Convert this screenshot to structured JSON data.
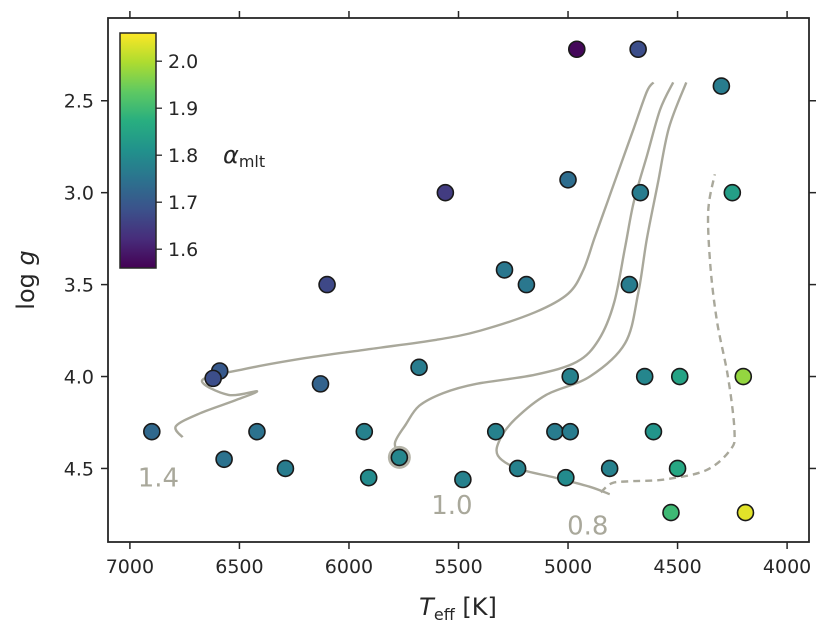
{
  "chart_data": {
    "type": "scatter",
    "xlabel": "T_eff [K]",
    "xlabel_main": "T",
    "xlabel_sub": "eff",
    "xlabel_unit": " [K]",
    "ylabel": "log g",
    "ylabel_main": "log ",
    "ylabel_var": "g",
    "xlim": [
      7100,
      3900
    ],
    "ylim": [
      4.9,
      2.05
    ],
    "x_ticks": [
      7000,
      6500,
      6000,
      5500,
      5000,
      4500,
      4000
    ],
    "x_tick_labels": [
      "7000",
      "6500",
      "6000",
      "5500",
      "5000",
      "4500",
      "4000"
    ],
    "y_ticks": [
      2.5,
      3.0,
      3.5,
      4.0,
      4.5
    ],
    "y_tick_labels": [
      "2.5",
      "3.0",
      "3.5",
      "4.0",
      "4.5"
    ],
    "colorbar": {
      "label": "α_mlt",
      "label_main": "α",
      "label_sub": "mlt",
      "range": [
        1.56,
        2.06
      ],
      "ticks": [
        1.6,
        1.7,
        1.8,
        1.9,
        2.0
      ],
      "tick_labels": [
        "1.6",
        "1.7",
        "1.8",
        "1.9",
        "2.0"
      ]
    },
    "points": [
      {
        "teff": 4960,
        "logg": 2.22,
        "alpha": 1.57
      },
      {
        "teff": 4680,
        "logg": 2.22,
        "alpha": 1.68
      },
      {
        "teff": 4300,
        "logg": 2.42,
        "alpha": 1.77
      },
      {
        "teff": 5000,
        "logg": 2.93,
        "alpha": 1.74
      },
      {
        "teff": 4670,
        "logg": 3.0,
        "alpha": 1.77
      },
      {
        "teff": 4250,
        "logg": 3.0,
        "alpha": 1.84
      },
      {
        "teff": 5560,
        "logg": 3.0,
        "alpha": 1.65
      },
      {
        "teff": 5290,
        "logg": 3.42,
        "alpha": 1.76
      },
      {
        "teff": 5190,
        "logg": 3.5,
        "alpha": 1.76
      },
      {
        "teff": 4720,
        "logg": 3.5,
        "alpha": 1.77
      },
      {
        "teff": 6100,
        "logg": 3.5,
        "alpha": 1.67
      },
      {
        "teff": 6590,
        "logg": 3.97,
        "alpha": 1.7
      },
      {
        "teff": 6620,
        "logg": 4.01,
        "alpha": 1.68
      },
      {
        "teff": 6130,
        "logg": 4.04,
        "alpha": 1.72
      },
      {
        "teff": 5680,
        "logg": 3.95,
        "alpha": 1.77
      },
      {
        "teff": 4990,
        "logg": 4.0,
        "alpha": 1.78
      },
      {
        "teff": 4650,
        "logg": 4.0,
        "alpha": 1.79
      },
      {
        "teff": 4490,
        "logg": 4.0,
        "alpha": 1.85
      },
      {
        "teff": 4200,
        "logg": 4.0,
        "alpha": 1.98
      },
      {
        "teff": 6900,
        "logg": 4.3,
        "alpha": 1.73
      },
      {
        "teff": 6420,
        "logg": 4.3,
        "alpha": 1.75
      },
      {
        "teff": 5930,
        "logg": 4.3,
        "alpha": 1.78
      },
      {
        "teff": 5330,
        "logg": 4.3,
        "alpha": 1.78
      },
      {
        "teff": 5060,
        "logg": 4.3,
        "alpha": 1.77
      },
      {
        "teff": 4990,
        "logg": 4.3,
        "alpha": 1.77
      },
      {
        "teff": 4610,
        "logg": 4.3,
        "alpha": 1.82
      },
      {
        "teff": 6570,
        "logg": 4.45,
        "alpha": 1.75
      },
      {
        "teff": 5770,
        "logg": 4.44,
        "alpha": 1.79
      },
      {
        "teff": 6290,
        "logg": 4.5,
        "alpha": 1.77
      },
      {
        "teff": 5230,
        "logg": 4.5,
        "alpha": 1.78
      },
      {
        "teff": 4810,
        "logg": 4.5,
        "alpha": 1.78
      },
      {
        "teff": 4500,
        "logg": 4.5,
        "alpha": 1.86
      },
      {
        "teff": 5910,
        "logg": 4.55,
        "alpha": 1.8
      },
      {
        "teff": 5480,
        "logg": 4.56,
        "alpha": 1.78
      },
      {
        "teff": 5010,
        "logg": 4.55,
        "alpha": 1.8
      },
      {
        "teff": 4530,
        "logg": 4.74,
        "alpha": 1.9
      },
      {
        "teff": 4190,
        "logg": 4.74,
        "alpha": 2.04
      }
    ],
    "sun_marker": {
      "teff": 5770,
      "logg": 4.44
    },
    "tracks": [
      {
        "label": "1.4",
        "style": "solid",
        "label_teff": 6870,
        "label_logg": 4.55,
        "points": [
          [
            6760,
            4.33
          ],
          [
            6790,
            4.27
          ],
          [
            6680,
            4.2
          ],
          [
            6520,
            4.13
          ],
          [
            6420,
            4.08
          ],
          [
            6550,
            4.1
          ],
          [
            6670,
            4.02
          ],
          [
            6480,
            3.96
          ],
          [
            6200,
            3.9
          ],
          [
            5900,
            3.85
          ],
          [
            5600,
            3.8
          ],
          [
            5400,
            3.75
          ],
          [
            5150,
            3.65
          ],
          [
            5000,
            3.55
          ],
          [
            4930,
            3.42
          ],
          [
            4880,
            3.25
          ],
          [
            4820,
            3.05
          ],
          [
            4760,
            2.85
          ],
          [
            4700,
            2.65
          ],
          [
            4640,
            2.45
          ],
          [
            4610,
            2.4
          ]
        ]
      },
      {
        "label": "1.0",
        "style": "solid",
        "label_teff": 5530,
        "label_logg": 4.7,
        "points": [
          [
            5770,
            4.43
          ],
          [
            5790,
            4.36
          ],
          [
            5740,
            4.26
          ],
          [
            5680,
            4.16
          ],
          [
            5570,
            4.09
          ],
          [
            5420,
            4.04
          ],
          [
            5150,
            3.99
          ],
          [
            4960,
            3.92
          ],
          [
            4860,
            3.8
          ],
          [
            4790,
            3.6
          ],
          [
            4740,
            3.3
          ],
          [
            4700,
            3.05
          ],
          [
            4640,
            2.8
          ],
          [
            4580,
            2.55
          ],
          [
            4520,
            2.4
          ]
        ]
      },
      {
        "label": "0.8",
        "style": "solid",
        "label_teff": 4910,
        "label_logg": 4.81,
        "points": [
          [
            4810,
            4.64
          ],
          [
            4900,
            4.6
          ],
          [
            5060,
            4.55
          ],
          [
            5230,
            4.5
          ],
          [
            5320,
            4.43
          ],
          [
            5310,
            4.34
          ],
          [
            5240,
            4.23
          ],
          [
            5100,
            4.1
          ],
          [
            4900,
            4.0
          ],
          [
            4740,
            3.82
          ],
          [
            4680,
            3.55
          ],
          [
            4640,
            3.25
          ],
          [
            4590,
            2.95
          ],
          [
            4540,
            2.65
          ],
          [
            4460,
            2.4
          ]
        ]
      },
      {
        "label": "",
        "style": "dashed",
        "points": [
          [
            4850,
            4.63
          ],
          [
            4800,
            4.58
          ],
          [
            4720,
            4.57
          ],
          [
            4560,
            4.56
          ],
          [
            4370,
            4.51
          ],
          [
            4260,
            4.4
          ],
          [
            4240,
            4.3
          ],
          [
            4270,
            4.0
          ],
          [
            4320,
            3.7
          ],
          [
            4350,
            3.4
          ],
          [
            4360,
            3.1
          ],
          [
            4330,
            2.9
          ]
        ]
      }
    ]
  }
}
